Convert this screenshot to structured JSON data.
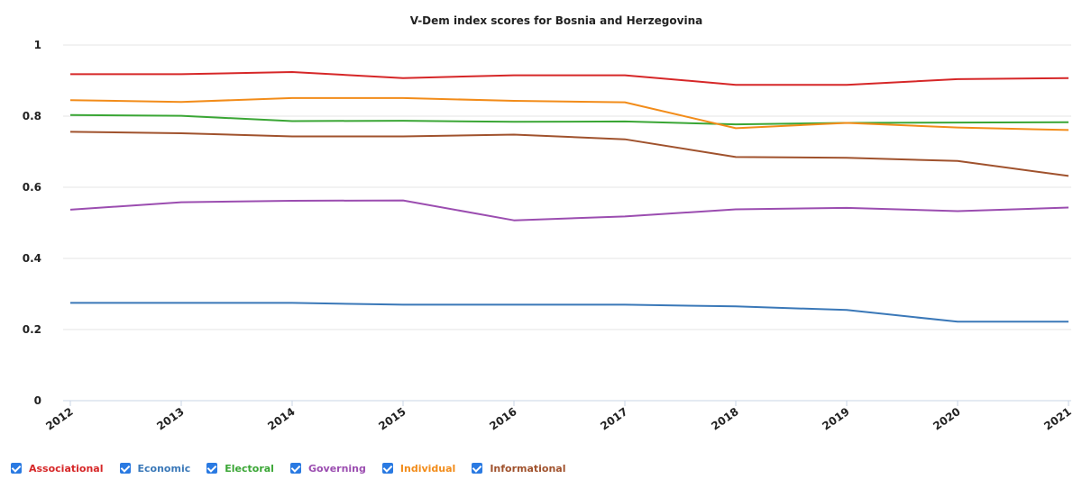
{
  "chart_data": {
    "type": "line",
    "title": "V-Dem index scores for Bosnia and Herzegovina",
    "x": [
      "2012",
      "2013",
      "2014",
      "2015",
      "2016",
      "2017",
      "2018",
      "2019",
      "2020",
      "2021"
    ],
    "ylim": [
      0,
      1
    ],
    "yticks": [
      "0",
      "0.2",
      "0.4",
      "0.6",
      "0.8",
      "1"
    ],
    "grid": true,
    "legend_position": "bottom-left",
    "series": [
      {
        "name": "Associational",
        "color": "#d62728",
        "values": [
          0.918,
          0.918,
          0.924,
          0.907,
          0.915,
          0.915,
          0.888,
          0.888,
          0.904,
          0.907
        ]
      },
      {
        "name": "Economic",
        "color": "#3a78b8",
        "values": [
          0.275,
          0.275,
          0.275,
          0.27,
          0.27,
          0.27,
          0.265,
          0.255,
          0.222,
          0.222
        ]
      },
      {
        "name": "Electoral",
        "color": "#3aa635",
        "values": [
          0.803,
          0.801,
          0.786,
          0.787,
          0.784,
          0.785,
          0.777,
          0.781,
          0.782,
          0.783
        ]
      },
      {
        "name": "Governing",
        "color": "#9b4db0",
        "values": [
          0.537,
          0.558,
          0.562,
          0.563,
          0.507,
          0.518,
          0.538,
          0.542,
          0.533,
          0.543
        ]
      },
      {
        "name": "Individual",
        "color": "#f28c1a",
        "values": [
          0.845,
          0.84,
          0.851,
          0.851,
          0.843,
          0.839,
          0.766,
          0.781,
          0.768,
          0.761
        ]
      },
      {
        "name": "Informational",
        "color": "#a0522d",
        "values": [
          0.756,
          0.752,
          0.743,
          0.743,
          0.748,
          0.735,
          0.685,
          0.683,
          0.674,
          0.632
        ]
      }
    ]
  }
}
